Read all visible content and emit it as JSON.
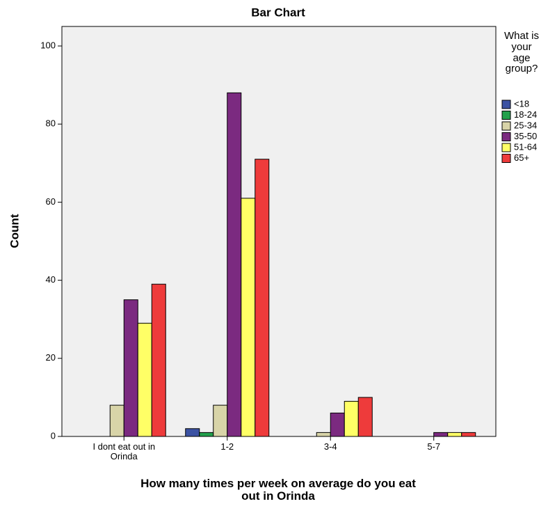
{
  "chart_data": {
    "type": "bar",
    "title": "Bar Chart",
    "x_label": "How many times per week on average do you eat out in Orinda",
    "y_label": "Count",
    "legend_title": "What is your age group?",
    "legend": "right",
    "categories": [
      "I dont eat out in Orinda",
      "1-2",
      "3-4",
      "5-7"
    ],
    "series": [
      {
        "name": "<18",
        "color": "#3b52a3",
        "values": [
          0,
          2,
          0,
          0
        ]
      },
      {
        "name": "18-24",
        "color": "#22a04b",
        "values": [
          0,
          1,
          0,
          0
        ]
      },
      {
        "name": "25-34",
        "color": "#d8d4a8",
        "values": [
          8,
          8,
          1,
          0
        ]
      },
      {
        "name": "35-50",
        "color": "#7b2a80",
        "values": [
          35,
          88,
          6,
          1
        ]
      },
      {
        "name": "51-64",
        "color": "#ffff66",
        "values": [
          29,
          61,
          9,
          1
        ]
      },
      {
        "name": "65+",
        "color": "#ee3b3b",
        "values": [
          39,
          71,
          10,
          1
        ]
      }
    ],
    "ylim": [
      0,
      105
    ],
    "yticks": [
      0,
      20,
      40,
      60,
      80,
      100
    ],
    "grid": false
  }
}
